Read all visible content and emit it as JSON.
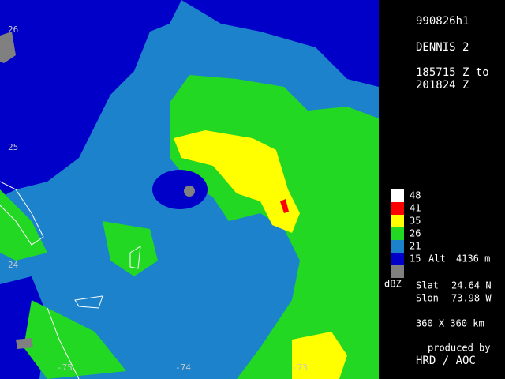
{
  "header": {
    "flight": "990826h1",
    "storm": "DENNIS 2",
    "time_start": "185715 Z to",
    "time_end": "201824 Z"
  },
  "legend": {
    "items": [
      {
        "label": 48,
        "color": "#ffffff"
      },
      {
        "label": 41,
        "color": "#ff0000"
      },
      {
        "label": 35,
        "color": "#ffff00"
      },
      {
        "label": 26,
        "color": "#22d822"
      },
      {
        "label": 21,
        "color": "#1c82cc"
      },
      {
        "label": 15,
        "color": "#0000c8"
      },
      {
        "color": "#808080"
      }
    ],
    "unit": "dBZ",
    "alt_label": "Alt",
    "alt_value": "4136 m"
  },
  "center": {
    "lat_label": "Slat",
    "lat": "24.64 N",
    "lon_label": "Slon",
    "lon": "73.98 W"
  },
  "domain": "360 X 360 km",
  "credit": {
    "line1": "produced by",
    "line2": "HRD / AOC"
  },
  "map": {
    "lat_labels": [
      "26",
      "25",
      "24"
    ],
    "lon_labels": [
      "-75",
      "-74",
      "-73"
    ]
  }
}
